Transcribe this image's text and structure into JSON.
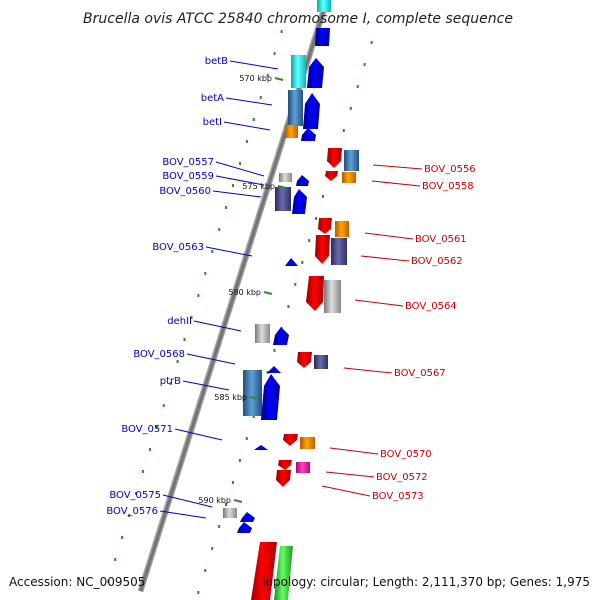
{
  "title": "Brucella ovis ATCC 25840 chromosome I, complete sequence",
  "footer": {
    "accession": "Accession: NC_009505",
    "summary": "Topology: circular; Length: 2,111,370 bp; Genes: 1,975"
  },
  "colors": {
    "backbone": "#888888",
    "forward_cds": "#0000ff",
    "reverse_cds": "#ff0000",
    "tick": "#2e8b2e",
    "label_forward": "#0000cc",
    "label_reverse": "#cc0000"
  },
  "scale_ticks": [
    "570 kbp",
    "575 kbp",
    "580 kbp",
    "585 kbp",
    "590 kbp"
  ],
  "left_labels": [
    "betB",
    "betA",
    "betI",
    "BOV_0557",
    "BOV_0559",
    "BOV_0560",
    "BOV_0563",
    "dehII",
    "BOV_0568",
    "ptrB",
    "BOV_0571",
    "BOV_0575",
    "BOV_0576"
  ],
  "right_labels": [
    "BOV_0556",
    "BOV_0558",
    "BOV_0561",
    "BOV_0562",
    "BOV_0564",
    "BOV_0567",
    "BOV_0570",
    "BOV_0572",
    "BOV_0573"
  ]
}
